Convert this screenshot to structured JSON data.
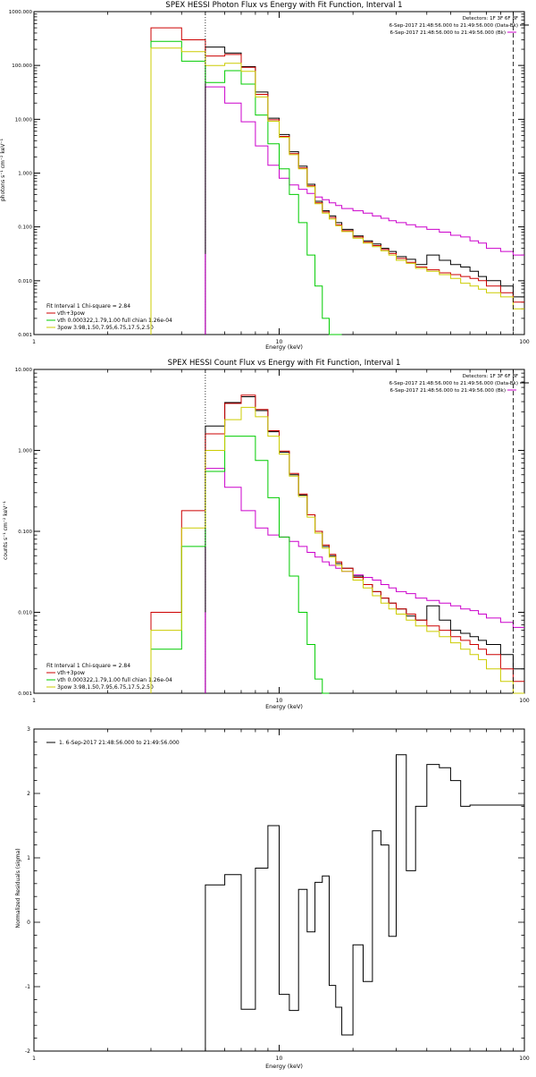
{
  "chart_data": [
    {
      "type": "line",
      "title": "SPEX HESSI Photon Flux vs Energy with Fit Function, Interval 1",
      "xlabel": "Energy (keV)",
      "ylabel": "photons s⁻¹ cm⁻² keV⁻¹",
      "xscale": "log",
      "yscale": "log",
      "xlim": [
        1,
        100
      ],
      "ylim": [
        0.001,
        1000
      ],
      "x_tick_labels": [
        "1",
        "10",
        "100"
      ],
      "y_tick_labels": [
        "0.001",
        "0.010",
        "0.100",
        "1.000",
        "10.000",
        "100.000",
        "1000.000"
      ],
      "header": [
        "Detectors: 1F 3F 6F 8F",
        "6-Sep-2017 21:48:56.000 to 21:49:56.000 (Data-Bk)",
        "6-Sep-2017 21:48:56.000 to 21:49:56.000 (Bk)"
      ],
      "legend_lines": [
        "Fit Interval 1   Chi-square = 2.84",
        "vth+3pow",
        "vth 0.000322,1.79,1.00  full chian 1.26e-04",
        "3pow 3.98,1.50,7.95,6.75,17.5,2.50"
      ],
      "legend_colors": [
        "#000000",
        "#cc0000",
        "#00cc00",
        "#cccc00"
      ],
      "vlines": [
        5,
        90
      ],
      "bin_edges": [
        3,
        4,
        5,
        6,
        7,
        8,
        9,
        10,
        11,
        12,
        13,
        14,
        15,
        16,
        17,
        18,
        20,
        22,
        24,
        26,
        28,
        30,
        33,
        36,
        40,
        45,
        50,
        55,
        60,
        65,
        70,
        80,
        90,
        100
      ],
      "series": [
        {
          "color": "#000000",
          "values": [
            null,
            null,
            220,
            170,
            95,
            32,
            10.5,
            5.2,
            2.5,
            1.35,
            0.62,
            0.3,
            0.2,
            0.16,
            0.12,
            0.09,
            0.068,
            0.055,
            0.048,
            0.04,
            0.035,
            0.028,
            0.025,
            0.02,
            0.03,
            0.024,
            0.02,
            0.018,
            0.015,
            0.012,
            0.01,
            0.008,
            0.005
          ]
        },
        {
          "color": "#cc0000",
          "values": [
            500,
            300,
            150,
            160,
            92,
            29,
            9.8,
            4.8,
            2.3,
            1.25,
            0.58,
            0.28,
            0.19,
            0.15,
            0.11,
            0.085,
            0.065,
            0.052,
            0.045,
            0.038,
            0.032,
            0.026,
            0.022,
            0.018,
            0.016,
            0.014,
            0.013,
            0.012,
            0.011,
            0.01,
            0.008,
            0.006,
            0.004
          ]
        },
        {
          "color": "#00cc00",
          "values": [
            280,
            120,
            48,
            80,
            45,
            12,
            3.5,
            1.2,
            0.4,
            0.12,
            0.03,
            0.008,
            0.002,
            0.001,
            0.001,
            null,
            null,
            null,
            null,
            null,
            null,
            null,
            null,
            null,
            null,
            null,
            null,
            null,
            null,
            null,
            null,
            null,
            null
          ]
        },
        {
          "color": "#cccc00",
          "values": [
            210,
            180,
            100,
            110,
            78,
            26,
            9.2,
            4.6,
            2.2,
            1.2,
            0.56,
            0.27,
            0.18,
            0.14,
            0.105,
            0.082,
            0.062,
            0.05,
            0.043,
            0.036,
            0.03,
            0.024,
            0.021,
            0.017,
            0.015,
            0.013,
            0.011,
            0.009,
            0.008,
            0.007,
            0.006,
            0.005,
            0.003
          ]
        },
        {
          "color": "#cc00cc",
          "values": [
            null,
            null,
            null,
            null,
            null,
            null,
            null,
            null,
            null,
            null,
            null,
            null,
            null,
            null,
            null,
            null,
            null,
            null,
            null,
            null,
            null,
            null,
            null,
            null,
            null,
            null,
            null,
            null,
            null,
            null,
            null,
            null,
            null
          ]
        }
      ],
      "bk_values": [
        null,
        null,
        40,
        20,
        9,
        3.2,
        1.4,
        0.8,
        0.6,
        0.5,
        0.42,
        0.36,
        0.32,
        0.28,
        0.25,
        0.22,
        0.2,
        0.18,
        0.16,
        0.145,
        0.13,
        0.12,
        0.11,
        0.1,
        0.09,
        0.08,
        0.07,
        0.065,
        0.055,
        0.05,
        0.04,
        0.035,
        0.03
      ]
    },
    {
      "type": "line",
      "title": "SPEX HESSI Count Flux vs Energy with Fit Function, Interval 1",
      "xlabel": "Energy (keV)",
      "ylabel": "counts s⁻¹ cm⁻² keV⁻¹",
      "xscale": "log",
      "yscale": "log",
      "xlim": [
        1,
        100
      ],
      "ylim": [
        0.001,
        10
      ],
      "x_tick_labels": [
        "1",
        "10",
        "100"
      ],
      "y_tick_labels": [
        "0.001",
        "0.010",
        "0.100",
        "1.000",
        "10.000"
      ],
      "header": [
        "Detectors: 1F 3F 6F 8F",
        "6-Sep-2017 21:48:56.000 to 21:49:56.000 (Data-Bk)",
        "6-Sep-2017 21:48:56.000 to 21:49:56.000 (Bk)"
      ],
      "legend_lines": [
        "Fit Interval 1   Chi-square = 2.84",
        "vth+3pow",
        "vth 0.000322,1.79,1.00  full chian 1.26e-04",
        "3pow 3.98,1.50,7.95,6.75,17.5,2.50"
      ],
      "legend_colors": [
        "#000000",
        "#cc0000",
        "#00cc00",
        "#cccc00"
      ],
      "vlines": [
        5,
        90
      ],
      "bin_edges": [
        3,
        4,
        5,
        6,
        7,
        8,
        9,
        10,
        11,
        12,
        13,
        14,
        15,
        16,
        17,
        18,
        20,
        22,
        24,
        26,
        28,
        30,
        33,
        36,
        40,
        45,
        50,
        55,
        60,
        65,
        70,
        80,
        90,
        100
      ],
      "series": [
        {
          "color": "#000000",
          "values": [
            null,
            null,
            2.0,
            3.9,
            4.6,
            3.1,
            1.7,
            0.95,
            0.5,
            0.28,
            0.16,
            0.1,
            0.065,
            0.05,
            0.04,
            0.035,
            0.028,
            0.022,
            0.018,
            0.015,
            0.013,
            0.011,
            0.009,
            0.008,
            0.012,
            0.008,
            0.006,
            0.0055,
            0.005,
            0.0045,
            0.004,
            0.003,
            0.002
          ]
        },
        {
          "color": "#cc0000",
          "values": [
            0.01,
            0.18,
            1.6,
            3.8,
            4.8,
            3.2,
            1.75,
            0.98,
            0.52,
            0.29,
            0.16,
            0.1,
            0.068,
            0.052,
            0.042,
            0.035,
            0.027,
            0.022,
            0.018,
            0.015,
            0.013,
            0.011,
            0.0095,
            0.008,
            0.0068,
            0.006,
            0.005,
            0.0045,
            0.004,
            0.0035,
            0.003,
            0.002,
            0.0014
          ]
        },
        {
          "color": "#00cc00",
          "values": [
            0.0035,
            0.065,
            0.55,
            1.5,
            1.5,
            0.75,
            0.26,
            0.085,
            0.028,
            0.01,
            0.004,
            0.0015,
            0.001,
            null,
            null,
            null,
            null,
            null,
            null,
            null,
            null,
            null,
            null,
            null,
            null,
            null,
            null,
            null,
            null,
            null,
            null,
            null,
            null
          ]
        },
        {
          "color": "#cccc00",
          "values": [
            0.006,
            0.11,
            1.0,
            2.4,
            3.4,
            2.6,
            1.5,
            0.9,
            0.48,
            0.27,
            0.15,
            0.095,
            0.062,
            0.048,
            0.038,
            0.032,
            0.025,
            0.02,
            0.016,
            0.013,
            0.011,
            0.0095,
            0.008,
            0.0068,
            0.0058,
            0.005,
            0.0042,
            0.0035,
            0.003,
            0.0026,
            0.002,
            0.0014,
            0.001
          ]
        }
      ],
      "bk_values": [
        null,
        null,
        0.6,
        0.35,
        0.18,
        0.11,
        0.09,
        0.085,
        0.075,
        0.065,
        0.055,
        0.048,
        0.042,
        0.038,
        0.035,
        0.032,
        0.029,
        0.027,
        0.025,
        0.022,
        0.02,
        0.018,
        0.017,
        0.015,
        0.014,
        0.013,
        0.012,
        0.011,
        0.0105,
        0.0095,
        0.0085,
        0.0075,
        0.0065
      ]
    },
    {
      "type": "line",
      "xlabel": "Energy (keV)",
      "ylabel": "Normalized Residuals (sigma)",
      "xscale": "log",
      "xlim": [
        1,
        100
      ],
      "ylim": [
        -2,
        3
      ],
      "x_tick_labels": [
        "1",
        "10",
        "100"
      ],
      "y_tick_labels": [
        "-2",
        "-1",
        "0",
        "1",
        "2",
        "3"
      ],
      "legend_lines": [
        "1.  6-Sep-2017 21:48:56.000 to 21:49:56.000"
      ],
      "bin_edges": [
        5,
        6,
        7,
        8,
        9,
        10,
        11,
        12,
        13,
        14,
        15,
        16,
        17,
        18,
        20,
        22,
        24,
        26,
        28,
        30,
        33,
        36,
        40,
        45,
        50,
        55,
        60,
        65,
        70,
        80,
        90,
        100
      ],
      "values": [
        0.58,
        0.74,
        -1.35,
        0.84,
        1.5,
        -1.12,
        -1.37,
        0.51,
        -0.15,
        0.62,
        0.72,
        -0.98,
        -1.32,
        -1.75,
        -0.35,
        -0.92,
        1.42,
        1.2,
        -0.22,
        2.6,
        0.8,
        1.8,
        2.45,
        2.4,
        2.2,
        1.8,
        1.82,
        1.82,
        1.82,
        1.82,
        1.82
      ]
    }
  ]
}
